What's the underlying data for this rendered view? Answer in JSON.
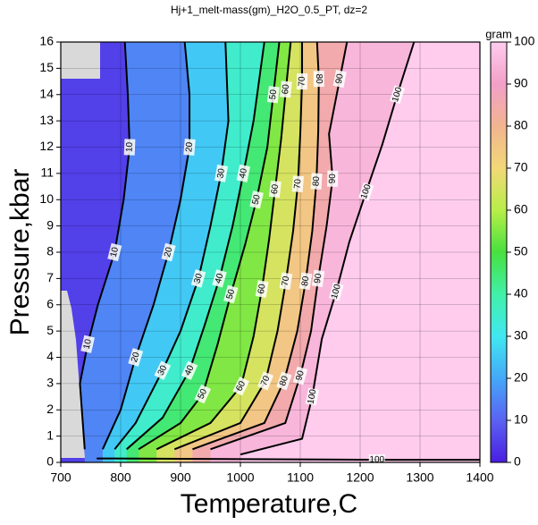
{
  "chart_data": {
    "type": "contour",
    "title": "Hj+1_melt-mass(gm)_H2O_0.5_PT, dz=2",
    "x_label": "Temperature,C",
    "y_label": "Pressure,kbar",
    "xlim": [
      700,
      1400
    ],
    "xticks": [
      700,
      800,
      900,
      1000,
      1100,
      1200,
      1300,
      1400
    ],
    "ylim": [
      0,
      16
    ],
    "yticks": [
      0,
      1,
      2,
      3,
      4,
      5,
      6,
      7,
      8,
      9,
      10,
      11,
      12,
      13,
      14,
      15,
      16
    ],
    "grid": true,
    "colorbar": {
      "label": "gram",
      "lim": [
        0,
        100
      ],
      "ticks": [
        0,
        10,
        20,
        30,
        40,
        50,
        60,
        70,
        80,
        90,
        100
      ]
    },
    "colormap": [
      "#4a1ee0",
      "#5a62f2",
      "#44a8f8",
      "#40e8f0",
      "#40f0a8",
      "#48e040",
      "#b8ee48",
      "#f2d878",
      "#f2b490",
      "#f2a0c8",
      "#ffccee"
    ],
    "contours": [
      {
        "level": 10,
        "x": [
          740,
          732,
          745,
          762,
          790,
          805,
          815,
          812,
          807
        ],
        "y": [
          0.5,
          3,
          4.5,
          6,
          8,
          10,
          12,
          14,
          16
        ]
      },
      {
        "level": 20,
        "x": [
          770,
          800,
          825,
          855,
          880,
          900,
          915,
          915,
          907
        ],
        "y": [
          0.5,
          2,
          4,
          6,
          8,
          10,
          12,
          14,
          16
        ]
      },
      {
        "level": 30,
        "x": [
          790,
          825,
          870,
          900,
          930,
          950,
          968,
          980,
          975
        ],
        "y": [
          0.5,
          1.5,
          3.5,
          5,
          7,
          9,
          11,
          13,
          16
        ]
      },
      {
        "level": 40,
        "x": [
          810,
          870,
          915,
          940,
          965,
          987,
          1005,
          1022,
          1040
        ],
        "y": [
          0.5,
          1.7,
          3.5,
          5.2,
          7,
          9,
          11,
          13,
          16
        ]
      },
      {
        "level": 50,
        "x": [
          830,
          900,
          937,
          962,
          984,
          1008,
          1027,
          1045,
          1055,
          1065
        ],
        "y": [
          0.5,
          1.5,
          2.6,
          4.5,
          6.4,
          8.3,
          10,
          12,
          14,
          16
        ]
      },
      {
        "level": 60,
        "x": [
          860,
          950,
          1001,
          1022,
          1036,
          1048,
          1058,
          1068,
          1076,
          1084
        ],
        "y": [
          0.5,
          1.5,
          2.9,
          4.8,
          6.6,
          8.5,
          10.4,
          12.3,
          14.2,
          16
        ]
      },
      {
        "level": 70,
        "x": [
          890,
          1000,
          1042,
          1062,
          1076,
          1088,
          1096,
          1100,
          1103,
          1103
        ],
        "y": [
          0.5,
          1.5,
          3.1,
          5,
          6.9,
          8.8,
          10.6,
          12.5,
          14.5,
          16
        ]
      },
      {
        "level": 80,
        "x": [
          920,
          1040,
          1073,
          1095,
          1109,
          1120,
          1127,
          1130,
          1131,
          1128
        ],
        "y": [
          0.5,
          1.5,
          3.1,
          5,
          6.9,
          8.8,
          10.7,
          12.6,
          14.6,
          16
        ]
      },
      {
        "level": 90,
        "x": [
          950,
          1075,
          1100,
          1118,
          1130,
          1144,
          1154,
          1148,
          1166,
          1178
        ],
        "y": [
          0.5,
          1.5,
          3.3,
          5,
          7,
          9,
          10.8,
          12.5,
          14.6,
          16
        ]
      },
      {
        "level": 100,
        "x": [
          1000,
          1103,
          1120,
          1136,
          1160,
          1182,
          1210,
          1237,
          1262,
          1290
        ],
        "y": [
          0.3,
          0.9,
          2.5,
          4.7,
          6.5,
          8.4,
          10.3,
          12.1,
          14,
          16
        ]
      },
      {
        "level": 100,
        "x": [
          760,
          1228,
          1400
        ],
        "y": [
          0.15,
          0.1,
          0.1
        ]
      }
    ]
  }
}
